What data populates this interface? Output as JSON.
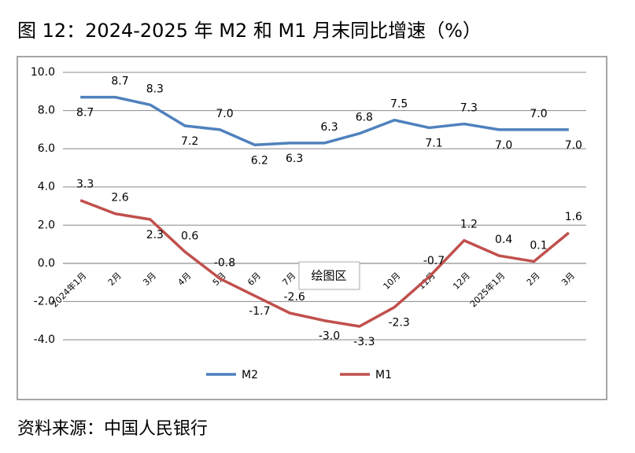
{
  "chart_data": {
    "type": "line",
    "title": "图 12：2024-2025 年 M2 和 M1 月末同比增速（%）",
    "source": "资料来源：中国人民银行",
    "annotation": "绘图区",
    "categories": [
      "2024年1月",
      "2月",
      "3月",
      "4月",
      "5月",
      "6月",
      "7月",
      null,
      null,
      "10月",
      "11月",
      "12月",
      "2025年1月",
      "2月",
      "3月"
    ],
    "series": [
      {
        "name": "M2",
        "color": "#4f81bd",
        "values": [
          8.7,
          8.7,
          8.3,
          7.2,
          7.0,
          6.2,
          6.3,
          6.3,
          6.8,
          7.5,
          7.1,
          7.3,
          7.0,
          7.0,
          7.0
        ],
        "value_labels": [
          "8.7",
          "8.7",
          "8.3",
          "7.2",
          "7.0",
          "6.2",
          "6.3",
          "6.3",
          "6.8",
          "7.5",
          "7.1",
          "7.3",
          "7.0",
          "7.0",
          "7.0"
        ]
      },
      {
        "name": "M1",
        "color": "#c0504d",
        "values": [
          3.3,
          2.6,
          2.3,
          0.6,
          -0.8,
          -1.7,
          -2.6,
          -3.0,
          -3.3,
          -2.3,
          -0.7,
          1.2,
          0.4,
          0.1,
          1.6
        ],
        "value_labels": [
          "3.3",
          "2.6",
          "2.3",
          "0.6",
          "-0.8",
          "-1.7",
          "-2.6",
          "-3.0",
          "-3.3",
          "-2.3",
          "-0.7",
          "1.2",
          "0.4",
          "0.1",
          "1.6"
        ]
      }
    ],
    "ylim": [
      -4,
      10
    ],
    "yticks": [
      {
        "value": -4,
        "label": "-4.0"
      },
      {
        "value": -2,
        "label": "-2.0"
      },
      {
        "value": 0,
        "label": "0.0"
      },
      {
        "value": 2,
        "label": "2.0"
      },
      {
        "value": 4,
        "label": "4.0"
      },
      {
        "value": 6,
        "label": "6.0"
      },
      {
        "value": 8,
        "label": "8.0"
      },
      {
        "value": 10,
        "label": "10.0"
      }
    ],
    "grid": true,
    "legend": "bottom"
  }
}
